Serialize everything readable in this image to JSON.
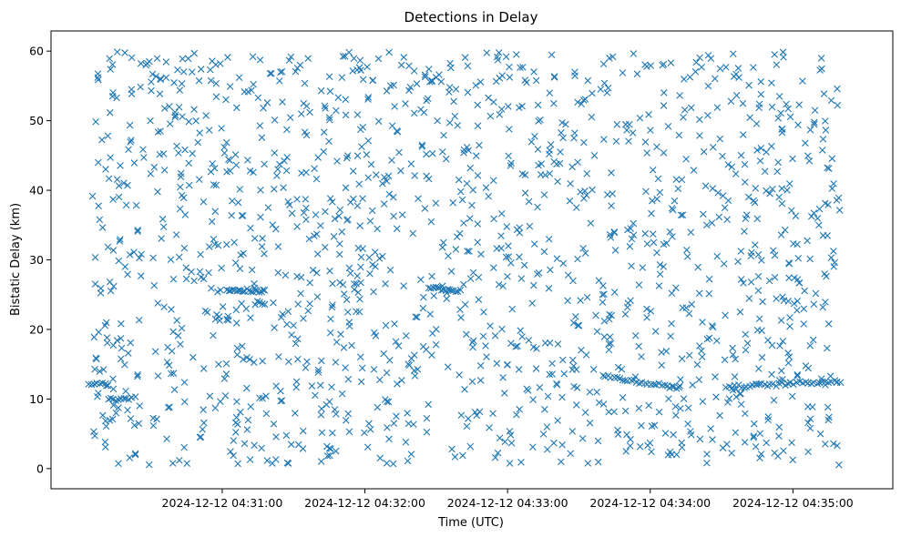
{
  "chart_data": {
    "type": "scatter",
    "title": "Detections in Delay",
    "xlabel": "Time (UTC)",
    "ylabel": "Bistatic Delay (km)",
    "marker": "x",
    "color": "#1f77b4",
    "x_unit": "time",
    "xlim": [
      "2024-12-12 04:29:48",
      "2024-12-12 04:35:42"
    ],
    "ylim": [
      -2.9,
      62.9
    ],
    "xticks": [
      "2024-12-12 04:31:00",
      "2024-12-12 04:32:00",
      "2024-12-12 04:33:00",
      "2024-12-12 04:34:00",
      "2024-12-12 04:35:00"
    ],
    "yticks": [
      0,
      10,
      20,
      30,
      40,
      50,
      60
    ],
    "grid": false,
    "clusters": [
      {
        "x_start": "2024-12-12 04:30:04",
        "x_end": "2024-12-12 04:30:12",
        "y_start": 12.1,
        "y_end": 12.1,
        "count": 8
      },
      {
        "x_start": "2024-12-12 04:30:12",
        "x_end": "2024-12-12 04:30:22",
        "y_start": 10.0,
        "y_end": 10.0,
        "count": 10
      },
      {
        "x_start": "2024-12-12 04:31:02",
        "x_end": "2024-12-12 04:31:18",
        "y_start": 25.8,
        "y_end": 25.5,
        "count": 20
      },
      {
        "x_start": "2024-12-12 04:31:14",
        "x_end": "2024-12-12 04:31:18",
        "y_start": 23.8,
        "y_end": 23.8,
        "count": 5
      },
      {
        "x_start": "2024-12-12 04:32:27",
        "x_end": "2024-12-12 04:32:40",
        "y_start": 26.0,
        "y_end": 25.6,
        "count": 16
      },
      {
        "x_start": "2024-12-12 04:33:40",
        "x_end": "2024-12-12 04:34:12",
        "y_start": 13.3,
        "y_end": 11.6,
        "count": 28
      },
      {
        "x_start": "2024-12-12 04:34:32",
        "x_end": "2024-12-12 04:35:20",
        "y_start": 11.7,
        "y_end": 12.6,
        "count": 40
      }
    ],
    "background_points": {
      "count": 1500,
      "x_range": [
        "2024-12-12 04:30:05",
        "2024-12-12 04:35:20"
      ],
      "y_range": [
        0.5,
        59.9
      ],
      "distribution": "roughly uniform"
    }
  }
}
